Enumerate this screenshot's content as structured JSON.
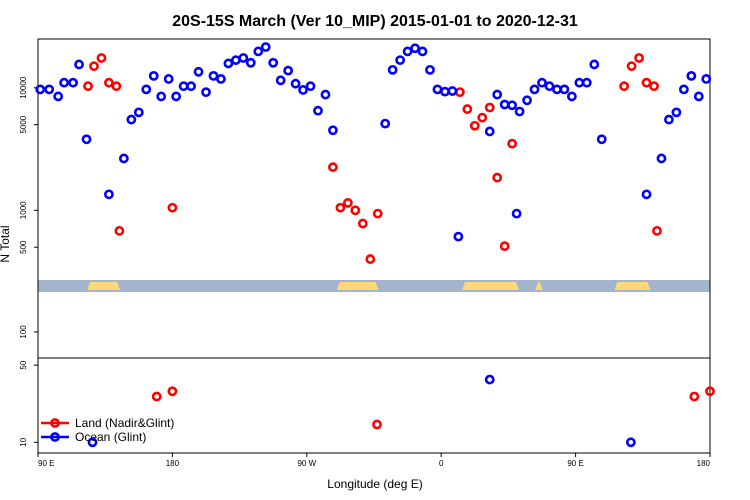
{
  "chart_data": {
    "type": "scatter",
    "title": "20S-15S March (Ver 10_MIP)   2015-01-01 to 2020-12-31",
    "xlabel": "Longitude (deg E)",
    "ylabel": "N Total",
    "x_ticks": [
      {
        "value": 90,
        "label": "90 E"
      },
      {
        "value": 180,
        "label": "180"
      },
      {
        "value": 270,
        "label": "90 W"
      },
      {
        "value": 360,
        "label": "0"
      },
      {
        "value": 450,
        "label": "90 E"
      },
      {
        "value": 540,
        "label": "180"
      }
    ],
    "xlim": [
      90,
      540
    ],
    "upper_panel": {
      "scale": "log",
      "ylim": [
        270,
        25000
      ],
      "y_ticks": [
        {
          "value": 500,
          "label": "500"
        },
        {
          "value": 1000,
          "label": "1000"
        },
        {
          "value": 5000,
          "label": "5000"
        },
        {
          "value": 10000,
          "label": "10000"
        }
      ]
    },
    "lower_panel": {
      "scale": "log",
      "ylim": [
        8,
        230
      ],
      "y_ticks": [
        {
          "value": 10,
          "label": "10"
        },
        {
          "value": 50,
          "label": "50"
        },
        {
          "value": 100,
          "label": "100"
        }
      ],
      "reference_line": 50
    },
    "land_ocean_strip": {
      "ocean_color": "#a2b5cd",
      "land_color": "#ffd87a",
      "land_ranges": [
        [
          123,
          145
        ],
        [
          290,
          318
        ],
        [
          374,
          412
        ],
        [
          423,
          428
        ],
        [
          476,
          500
        ]
      ]
    },
    "legend": {
      "position": "bottom-left",
      "entries": [
        {
          "name": "Land (Nadir&Glint)",
          "color": "#ff0000"
        },
        {
          "name": "Ocean (Glint)",
          "color": "#0000ff"
        }
      ]
    },
    "series": [
      {
        "name": "Land (Nadir&Glint)",
        "color": "#ff0000",
        "upper": [
          {
            "x": 123.5,
            "y": 10300
          },
          {
            "x": 127.5,
            "y": 15000
          },
          {
            "x": 132.5,
            "y": 17500
          },
          {
            "x": 137.5,
            "y": 11000
          },
          {
            "x": 142.5,
            "y": 10300
          },
          {
            "x": 144.5,
            "y": 680
          },
          {
            "x": 180,
            "y": 1050
          },
          {
            "x": 287.5,
            "y": 2250
          },
          {
            "x": 292.5,
            "y": 1050
          },
          {
            "x": 297.5,
            "y": 1150
          },
          {
            "x": 302.5,
            "y": 1000
          },
          {
            "x": 307.5,
            "y": 780
          },
          {
            "x": 312.5,
            "y": 400
          },
          {
            "x": 317.5,
            "y": 940
          },
          {
            "x": 372.5,
            "y": 9200
          },
          {
            "x": 377.5,
            "y": 6700
          },
          {
            "x": 382.5,
            "y": 4900
          },
          {
            "x": 387.5,
            "y": 5700
          },
          {
            "x": 392.5,
            "y": 6900
          },
          {
            "x": 397.5,
            "y": 1850
          },
          {
            "x": 402.5,
            "y": 510
          },
          {
            "x": 407.5,
            "y": 3500
          },
          {
            "x": 482.5,
            "y": 10300
          },
          {
            "x": 487.5,
            "y": 15000
          },
          {
            "x": 492.5,
            "y": 17500
          },
          {
            "x": 497.5,
            "y": 11000
          },
          {
            "x": 502.5,
            "y": 10300
          },
          {
            "x": 504.5,
            "y": 680
          }
        ],
        "lower": [
          {
            "x": 169.5,
            "y": 26
          },
          {
            "x": 180,
            "y": 29
          },
          {
            "x": 317,
            "y": 14.5
          },
          {
            "x": 529.5,
            "y": 26
          },
          {
            "x": 540,
            "y": 29
          }
        ]
      },
      {
        "name": "Ocean (Glint)",
        "color": "#0000ff",
        "upper": [
          {
            "x": 91.5,
            "y": 9700
          },
          {
            "x": 97.5,
            "y": 9700
          },
          {
            "x": 103.5,
            "y": 8500
          },
          {
            "x": 107.5,
            "y": 11000
          },
          {
            "x": 113.5,
            "y": 11000
          },
          {
            "x": 117.5,
            "y": 15500
          },
          {
            "x": 122.5,
            "y": 3800
          },
          {
            "x": 137.5,
            "y": 1350
          },
          {
            "x": 147.5,
            "y": 2650
          },
          {
            "x": 152.5,
            "y": 5500
          },
          {
            "x": 157.5,
            "y": 6300
          },
          {
            "x": 162.5,
            "y": 9700
          },
          {
            "x": 167.5,
            "y": 12500
          },
          {
            "x": 172.5,
            "y": 8500
          },
          {
            "x": 177.5,
            "y": 11800
          },
          {
            "x": 182.5,
            "y": 8500
          },
          {
            "x": 187.5,
            "y": 10300
          },
          {
            "x": 192.5,
            "y": 10300
          },
          {
            "x": 197.5,
            "y": 13500
          },
          {
            "x": 202.5,
            "y": 9200
          },
          {
            "x": 207.5,
            "y": 12500
          },
          {
            "x": 212.5,
            "y": 11800
          },
          {
            "x": 217.5,
            "y": 15800
          },
          {
            "x": 222.5,
            "y": 16800
          },
          {
            "x": 227.5,
            "y": 17500
          },
          {
            "x": 232.5,
            "y": 16000
          },
          {
            "x": 237.5,
            "y": 19800
          },
          {
            "x": 242.5,
            "y": 21500
          },
          {
            "x": 247.5,
            "y": 16000
          },
          {
            "x": 252.5,
            "y": 11500
          },
          {
            "x": 257.5,
            "y": 13800
          },
          {
            "x": 262.5,
            "y": 10800
          },
          {
            "x": 267.5,
            "y": 9600
          },
          {
            "x": 272.5,
            "y": 10300
          },
          {
            "x": 277.5,
            "y": 6500
          },
          {
            "x": 282.5,
            "y": 8800
          },
          {
            "x": 287.5,
            "y": 4500
          },
          {
            "x": 322.5,
            "y": 5100
          },
          {
            "x": 327.5,
            "y": 14000
          },
          {
            "x": 332.5,
            "y": 16800
          },
          {
            "x": 337.5,
            "y": 19800
          },
          {
            "x": 342.5,
            "y": 21000
          },
          {
            "x": 347.5,
            "y": 19800
          },
          {
            "x": 352.5,
            "y": 14000
          },
          {
            "x": 357.5,
            "y": 9700
          },
          {
            "x": 362.5,
            "y": 9300
          },
          {
            "x": 367.5,
            "y": 9400
          },
          {
            "x": 371.5,
            "y": 610
          },
          {
            "x": 392.5,
            "y": 4400
          },
          {
            "x": 397.5,
            "y": 8800
          },
          {
            "x": 402.5,
            "y": 7300
          },
          {
            "x": 407.5,
            "y": 7200
          },
          {
            "x": 410.5,
            "y": 940
          },
          {
            "x": 412.5,
            "y": 6400
          },
          {
            "x": 417.5,
            "y": 7900
          },
          {
            "x": 422.5,
            "y": 9700
          },
          {
            "x": 427.5,
            "y": 11000
          },
          {
            "x": 432.5,
            "y": 10300
          },
          {
            "x": 437.5,
            "y": 9700
          },
          {
            "x": 442.5,
            "y": 9700
          },
          {
            "x": 447.5,
            "y": 8500
          },
          {
            "x": 452.5,
            "y": 11000
          },
          {
            "x": 457.5,
            "y": 11000
          },
          {
            "x": 462.5,
            "y": 15500
          },
          {
            "x": 467.5,
            "y": 3800
          },
          {
            "x": 497.5,
            "y": 1350
          },
          {
            "x": 507.5,
            "y": 2650
          },
          {
            "x": 512.5,
            "y": 5500
          },
          {
            "x": 517.5,
            "y": 6300
          },
          {
            "x": 522.5,
            "y": 9700
          },
          {
            "x": 527.5,
            "y": 12500
          },
          {
            "x": 532.5,
            "y": 8500
          },
          {
            "x": 537.5,
            "y": 11800
          }
        ],
        "lower": [
          {
            "x": 126.5,
            "y": 10
          },
          {
            "x": 392.5,
            "y": 37
          },
          {
            "x": 487,
            "y": 10
          }
        ]
      }
    ]
  }
}
